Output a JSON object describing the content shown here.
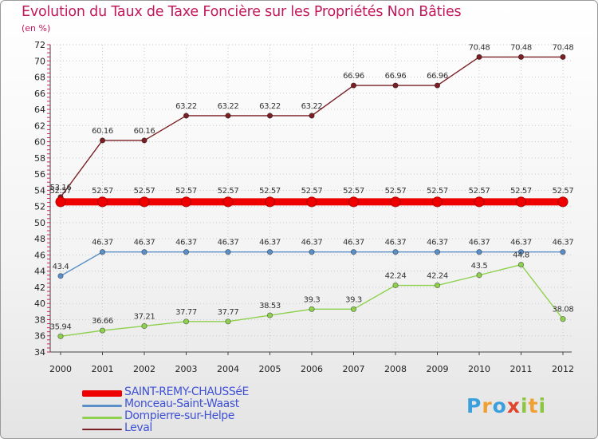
{
  "chart_data": {
    "type": "line",
    "title": "Evolution du Taux de Taxe Foncière sur les Propriétés Non Bâties",
    "unit_label": "(en %)",
    "xlabel": "",
    "ylabel": "(en %)",
    "ylim": [
      34,
      72
    ],
    "y_ticks": [
      34,
      36,
      38,
      40,
      42,
      44,
      46,
      48,
      50,
      52,
      54,
      56,
      58,
      60,
      62,
      64,
      66,
      68,
      70,
      72
    ],
    "categories": [
      "2000",
      "2001",
      "2002",
      "2003",
      "2004",
      "2005",
      "2006",
      "2007",
      "2008",
      "2009",
      "2010",
      "2011",
      "2012"
    ],
    "series": [
      {
        "name": "SAINT-REMY-CHAUSSéE",
        "color": "#ee0000",
        "values": [
          52.57,
          52.57,
          52.57,
          52.57,
          52.57,
          52.57,
          52.57,
          52.57,
          52.57,
          52.57,
          52.57,
          52.57,
          52.57
        ],
        "labels": [
          "52.57",
          "52.57",
          "52.57",
          "52.57",
          "52.57",
          "52.57",
          "52.57",
          "52.57",
          "52.57",
          "52.57",
          "52.57",
          "52.57",
          "52.57"
        ]
      },
      {
        "name": "Monceau-Saint-Waast",
        "color": "#5b8fc8",
        "values": [
          43.4,
          46.37,
          46.37,
          46.37,
          46.37,
          46.37,
          46.37,
          46.37,
          46.37,
          46.37,
          46.37,
          46.37,
          46.37
        ],
        "labels": [
          "43.4",
          "46.37",
          "46.37",
          "46.37",
          "46.37",
          "46.37",
          "46.37",
          "46.37",
          "46.37",
          "46.37",
          "46.37",
          "46.37",
          "46.37"
        ]
      },
      {
        "name": "Dompierre-sur-Helpe",
        "color": "#8fd14f",
        "values": [
          35.94,
          36.66,
          37.21,
          37.77,
          37.77,
          38.53,
          39.3,
          39.3,
          42.24,
          42.24,
          43.5,
          44.8,
          38.08
        ],
        "labels": [
          "35.94",
          "36.66",
          "37.21",
          "37.77",
          "37.77",
          "38.53",
          "39.3",
          "39.3",
          "42.24",
          "42.24",
          "43.5",
          "44.8",
          "38.08"
        ]
      },
      {
        "name": "Leval",
        "color": "#7a1f24",
        "values": [
          53.16,
          60.16,
          60.16,
          63.22,
          63.22,
          63.22,
          63.22,
          66.96,
          66.96,
          66.96,
          70.48,
          70.48,
          70.48
        ],
        "labels": [
          "53.16",
          "60.16",
          "60.16",
          "63.22",
          "63.22",
          "63.22",
          "63.22",
          "66.96",
          "66.96",
          "66.96",
          "70.48",
          "70.48",
          "70.48"
        ]
      }
    ],
    "legend_position": "bottom-left"
  },
  "legend": {
    "items": [
      {
        "name": "SAINT-REMY-CHAUSSéE",
        "color": "#ee0000"
      },
      {
        "name": "Monceau-Saint-Waast",
        "color": "#5b8fc8"
      },
      {
        "name": "Dompierre-sur-Helpe",
        "color": "#8fd14f"
      },
      {
        "name": "Leval",
        "color": "#7a1f24"
      }
    ]
  },
  "brand": {
    "text": "Proxiti"
  }
}
